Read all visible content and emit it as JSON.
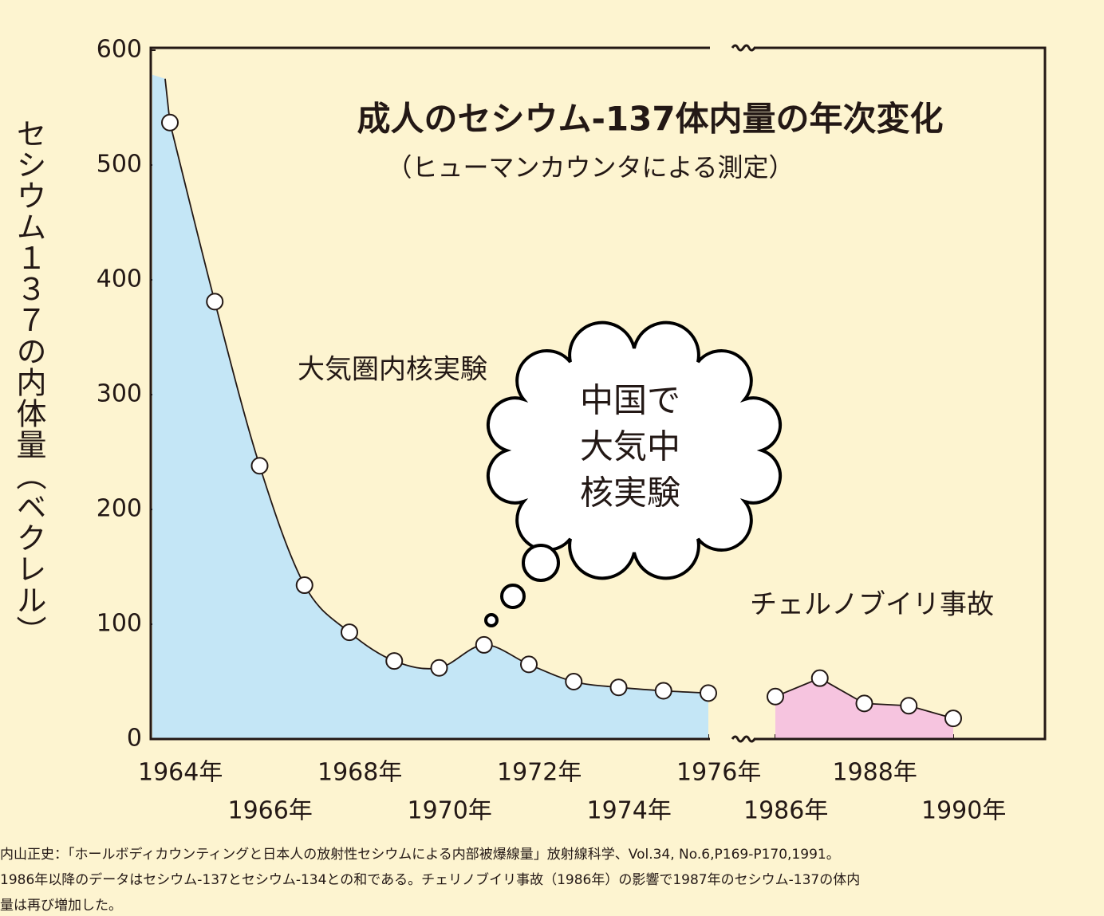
{
  "chart_data": {
    "type": "line",
    "title": "成人のセシウム-137体内量の年次変化",
    "subtitle": "（ヒューマンカウンタによる測定）",
    "y_label": "セシウム１３７の内体量（ベクレル）",
    "annotations": [
      "大気圏内核実験",
      "チェルノブイリ事故",
      [
        "中国で",
        "大気中",
        "核実験"
      ]
    ],
    "x": [
      1964,
      1965,
      1966,
      1967,
      1968,
      1969,
      1970,
      1971,
      1972,
      1973,
      1974,
      1975,
      1976,
      1986,
      1987,
      1988,
      1989,
      1990
    ],
    "axis_break": [
      1976,
      1986
    ],
    "series": [
      {
        "color": "#c4e6f6",
        "values": [
          537,
          381,
          238,
          134,
          93,
          68,
          62,
          82,
          65,
          50,
          45,
          42,
          40,
          null,
          null,
          null,
          null,
          null
        ]
      },
      {
        "color": "#f6c4df",
        "values": [
          null,
          null,
          null,
          null,
          null,
          null,
          null,
          null,
          null,
          null,
          null,
          null,
          null,
          37,
          53,
          31,
          29,
          18
        ]
      }
    ],
    "ylim": [
      0,
      600
    ],
    "yticks": [
      0,
      100,
      200,
      300,
      400,
      500,
      600
    ],
    "xticks": [
      {
        "value": 1964,
        "label": "1964年"
      },
      {
        "value": 1966,
        "label": "1966年"
      },
      {
        "value": 1968,
        "label": "1968年"
      },
      {
        "value": 1970,
        "label": "1970年"
      },
      {
        "value": 1972,
        "label": "1972年"
      },
      {
        "value": 1974,
        "label": "1974年"
      },
      {
        "value": 1976,
        "label": "1976年"
      },
      {
        "value": 1986,
        "label": "1986年"
      },
      {
        "value": 1988,
        "label": "1988年"
      },
      {
        "value": 1990,
        "label": "1990年"
      }
    ]
  },
  "footnote": [
    "内山正史：「ホールボディカウンティングと日本人の放射性セシウムによる内部被爆線量」放射線科学、Vol.34, No.6,P169-P170,1991。",
    "1986年以降のデータはセシウム-137とセシウム-134との和である。チェリノブイリ事故（1986年）の影響で1987年のセシウム-137の体内",
    "量は再び増加した。"
  ]
}
